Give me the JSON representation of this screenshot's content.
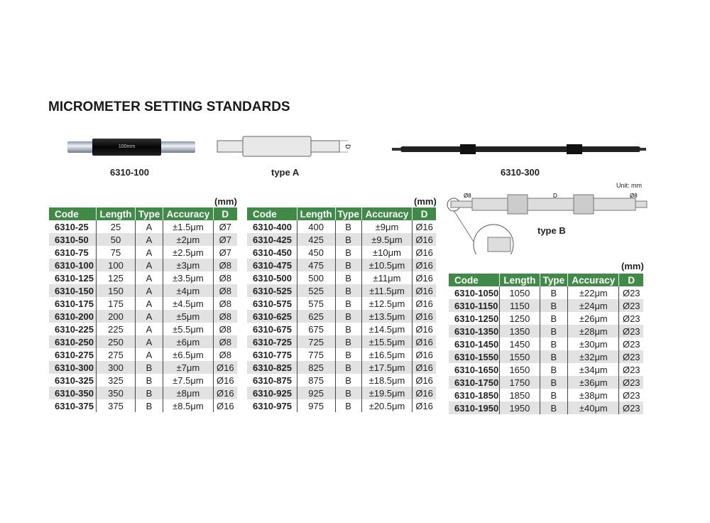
{
  "title": "MICROMETER SETTING STANDARDS",
  "captions": {
    "photo1": "6310-100",
    "typeA": "type A",
    "photo2": "6310-300",
    "typeB": "type B",
    "unit": "Unit: mm",
    "photo_label": "100mm",
    "dim_d": "D",
    "dim_d8": "Ø8"
  },
  "colors": {
    "header": "#3f8a46",
    "stripe": "#e2e2e2"
  },
  "headers": [
    "Code",
    "Length",
    "Type",
    "Accuracy",
    "D"
  ],
  "unit_label": "(mm)",
  "table1": [
    [
      "6310-25",
      "25",
      "A",
      "±1.5μm",
      "Ø7"
    ],
    [
      "6310-50",
      "50",
      "A",
      "±2μm",
      "Ø7"
    ],
    [
      "6310-75",
      "75",
      "A",
      "±2.5μm",
      "Ø7"
    ],
    [
      "6310-100",
      "100",
      "A",
      "±3μm",
      "Ø8"
    ],
    [
      "6310-125",
      "125",
      "A",
      "±3.5μm",
      "Ø8"
    ],
    [
      "6310-150",
      "150",
      "A",
      "±4μm",
      "Ø8"
    ],
    [
      "6310-175",
      "175",
      "A",
      "±4.5μm",
      "Ø8"
    ],
    [
      "6310-200",
      "200",
      "A",
      "±5μm",
      "Ø8"
    ],
    [
      "6310-225",
      "225",
      "A",
      "±5.5μm",
      "Ø8"
    ],
    [
      "6310-250",
      "250",
      "A",
      "±6μm",
      "Ø8"
    ],
    [
      "6310-275",
      "275",
      "A",
      "±6.5μm",
      "Ø8"
    ],
    [
      "6310-300",
      "300",
      "B",
      "±7μm",
      "Ø16"
    ],
    [
      "6310-325",
      "325",
      "B",
      "±7.5μm",
      "Ø16"
    ],
    [
      "6310-350",
      "350",
      "B",
      "±8μm",
      "Ø16"
    ],
    [
      "6310-375",
      "375",
      "B",
      "±8.5μm",
      "Ø16"
    ]
  ],
  "table2": [
    [
      "6310-400",
      "400",
      "B",
      "±9μm",
      "Ø16"
    ],
    [
      "6310-425",
      "425",
      "B",
      "±9.5μm",
      "Ø16"
    ],
    [
      "6310-450",
      "450",
      "B",
      "±10μm",
      "Ø16"
    ],
    [
      "6310-475",
      "475",
      "B",
      "±10.5μm",
      "Ø16"
    ],
    [
      "6310-500",
      "500",
      "B",
      "±11μm",
      "Ø16"
    ],
    [
      "6310-525",
      "525",
      "B",
      "±11.5μm",
      "Ø16"
    ],
    [
      "6310-575",
      "575",
      "B",
      "±12.5μm",
      "Ø16"
    ],
    [
      "6310-625",
      "625",
      "B",
      "±13.5μm",
      "Ø16"
    ],
    [
      "6310-675",
      "675",
      "B",
      "±14.5μm",
      "Ø16"
    ],
    [
      "6310-725",
      "725",
      "B",
      "±15.5μm",
      "Ø16"
    ],
    [
      "6310-775",
      "775",
      "B",
      "±16.5μm",
      "Ø16"
    ],
    [
      "6310-825",
      "825",
      "B",
      "±17.5μm",
      "Ø16"
    ],
    [
      "6310-875",
      "875",
      "B",
      "±18.5μm",
      "Ø16"
    ],
    [
      "6310-925",
      "925",
      "B",
      "±19.5μm",
      "Ø16"
    ],
    [
      "6310-975",
      "975",
      "B",
      "±20.5μm",
      "Ø16"
    ]
  ],
  "table3": [
    [
      "6310-1050",
      "1050",
      "B",
      "±22μm",
      "Ø23"
    ],
    [
      "6310-1150",
      "1150",
      "B",
      "±24μm",
      "Ø23"
    ],
    [
      "6310-1250",
      "1250",
      "B",
      "±26μm",
      "Ø23"
    ],
    [
      "6310-1350",
      "1350",
      "B",
      "±28μm",
      "Ø23"
    ],
    [
      "6310-1450",
      "1450",
      "B",
      "±30μm",
      "Ø23"
    ],
    [
      "6310-1550",
      "1550",
      "B",
      "±32μm",
      "Ø23"
    ],
    [
      "6310-1650",
      "1650",
      "B",
      "±34μm",
      "Ø23"
    ],
    [
      "6310-1750",
      "1750",
      "B",
      "±36μm",
      "Ø23"
    ],
    [
      "6310-1850",
      "1850",
      "B",
      "±38μm",
      "Ø23"
    ],
    [
      "6310-1950",
      "1950",
      "B",
      "±40μm",
      "Ø23"
    ]
  ]
}
